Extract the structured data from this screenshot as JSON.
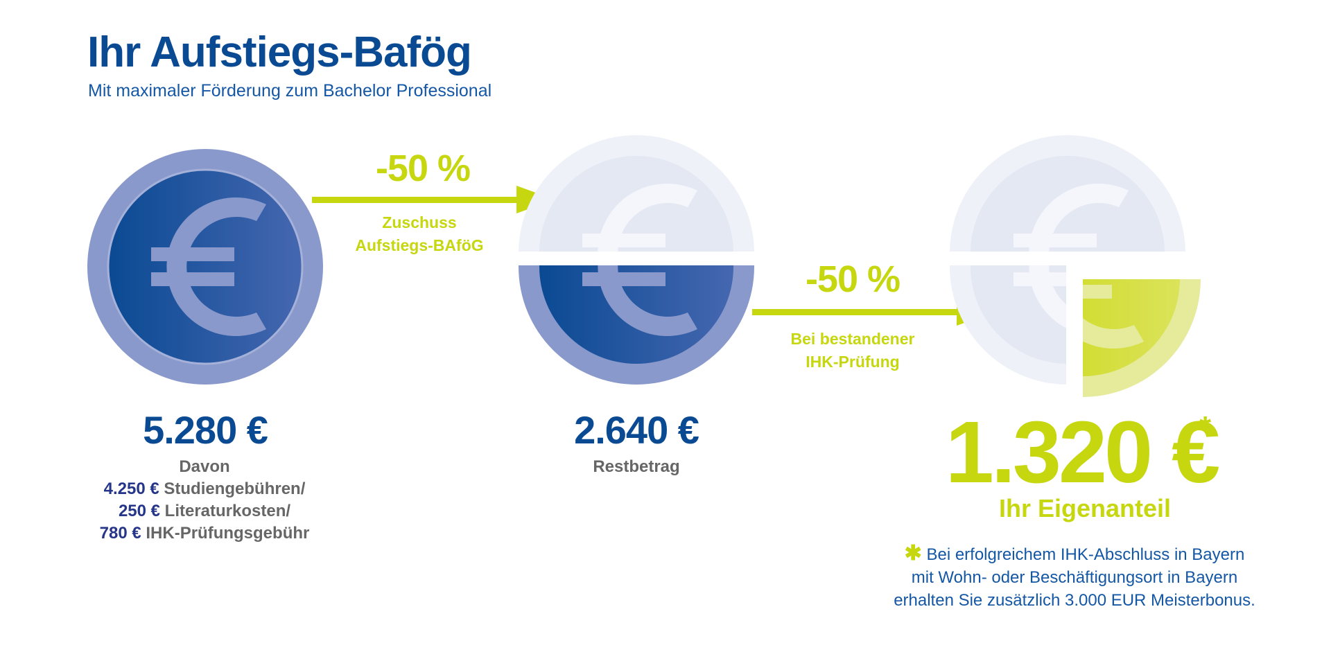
{
  "header": {
    "title": "Ihr Aufstiegs-Bafög",
    "subtitle": "Mit maximaler Förderung zum Bachelor Professional"
  },
  "colors": {
    "dark_blue": "#0a4a93",
    "coin_rim": "#8a99cc",
    "lime": "#c6d60f",
    "gray_text": "#666666",
    "faded_coin": "#e6eaf4"
  },
  "icons": [
    "euro-coin-icon",
    "arrow-right-icon",
    "asterisk-icon"
  ],
  "step1": {
    "amount": "5.280 €",
    "caption_intro": "Davon",
    "items": [
      {
        "value": "4.250 €",
        "label": " Studiengebühren/"
      },
      {
        "value": "250 €",
        "label": " Literaturkosten/"
      },
      {
        "value": "780 €",
        "label": " IHK-Prüfungsgebühr"
      }
    ]
  },
  "arrow1": {
    "percent": "-50 %",
    "label_line1": "Zuschuss",
    "label_line2": "Aufstiegs-BAföG"
  },
  "step2": {
    "amount": "2.640 €",
    "caption": "Restbetrag"
  },
  "arrow2": {
    "percent": "-50 %",
    "label_line1": "Bei bestandener",
    "label_line2": "IHK-Prüfung"
  },
  "step3": {
    "amount": "1.320 €",
    "star": "*",
    "caption": "Ihr Eigenanteil"
  },
  "footnote": {
    "star": "✱",
    "line1": "Bei erfolgreichem IHK-Abschluss in Bayern",
    "line2": "mit Wohn- oder Beschäftigungsort in Bayern",
    "line3": "erhalten Sie zusätzlich 3.000 EUR Meisterbonus."
  }
}
